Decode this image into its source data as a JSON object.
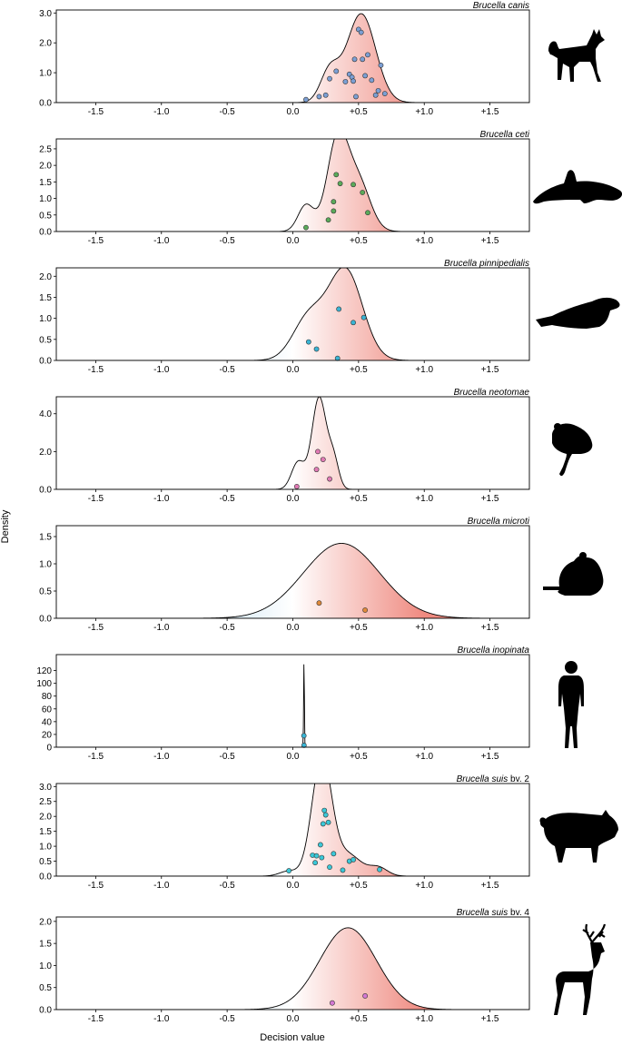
{
  "figure": {
    "ylabel": "Density",
    "xlabel": "Decision value",
    "kde_fill": {
      "negative_color": "#d9ecf7",
      "zero_color": "#ffffff",
      "positive_color": "#ef8a80",
      "outline_color": "#000000"
    }
  },
  "chart_data": [
    {
      "type": "area",
      "title": "Brucella canis",
      "title_parts": [
        {
          "text": "Brucella canis",
          "italic": true
        }
      ],
      "host_icon": "dog-silhouette-icon",
      "xlim": [
        -1.8,
        1.8
      ],
      "ylim": [
        0,
        3.1
      ],
      "x_ticks": [
        -1.5,
        -1.0,
        -0.5,
        0.0,
        0.5,
        1.0,
        1.5
      ],
      "x_tick_labels": [
        "-1.5",
        "-1.0",
        "-0.5",
        "0.0",
        "+0.5",
        "+1.0",
        "+1.5"
      ],
      "y_ticks": [
        0,
        1,
        2,
        3
      ],
      "y_tick_labels": [
        "0.0",
        "1.0",
        "2.0",
        "3.0"
      ],
      "kde_components": [
        {
          "mean": 0.28,
          "sd": 0.07,
          "weight": 0.18
        },
        {
          "mean": 0.52,
          "sd": 0.11,
          "weight": 0.82
        }
      ],
      "point_color": "#7b9fd4",
      "points": [
        {
          "x": 0.1,
          "y": 0.1
        },
        {
          "x": 0.2,
          "y": 0.2
        },
        {
          "x": 0.25,
          "y": 0.25
        },
        {
          "x": 0.28,
          "y": 0.8
        },
        {
          "x": 0.33,
          "y": 1.05
        },
        {
          "x": 0.4,
          "y": 0.7
        },
        {
          "x": 0.43,
          "y": 0.95
        },
        {
          "x": 0.45,
          "y": 0.85
        },
        {
          "x": 0.46,
          "y": 0.72
        },
        {
          "x": 0.47,
          "y": 1.45
        },
        {
          "x": 0.48,
          "y": 0.2
        },
        {
          "x": 0.5,
          "y": 2.45
        },
        {
          "x": 0.52,
          "y": 2.35
        },
        {
          "x": 0.53,
          "y": 1.45
        },
        {
          "x": 0.55,
          "y": 0.9
        },
        {
          "x": 0.57,
          "y": 1.6
        },
        {
          "x": 0.6,
          "y": 0.75
        },
        {
          "x": 0.63,
          "y": 0.25
        },
        {
          "x": 0.65,
          "y": 0.4
        },
        {
          "x": 0.67,
          "y": 1.25
        },
        {
          "x": 0.7,
          "y": 0.3
        }
      ]
    },
    {
      "type": "area",
      "title": "Brucella ceti",
      "title_parts": [
        {
          "text": "Brucella ceti",
          "italic": true
        }
      ],
      "host_icon": "dolphin-silhouette-icon",
      "xlim": [
        -1.8,
        1.8
      ],
      "ylim": [
        0,
        2.8
      ],
      "x_ticks": [
        -1.5,
        -1.0,
        -0.5,
        0.0,
        0.5,
        1.0,
        1.5
      ],
      "x_tick_labels": [
        "-1.5",
        "-1.0",
        "-0.5",
        "0.0",
        "+0.5",
        "+1.0",
        "+1.5"
      ],
      "y_ticks": [
        0,
        0.5,
        1.0,
        1.5,
        2.0,
        2.5
      ],
      "y_tick_labels": [
        "0.0",
        "0.5",
        "1.0",
        "1.5",
        "2.0",
        "2.5"
      ],
      "kde_components": [
        {
          "mean": 0.1,
          "sd": 0.06,
          "weight": 0.12
        },
        {
          "mean": 0.34,
          "sd": 0.08,
          "weight": 0.55
        },
        {
          "mean": 0.5,
          "sd": 0.09,
          "weight": 0.33
        }
      ],
      "point_color": "#5aaa5a",
      "points": [
        {
          "x": 0.1,
          "y": 0.12
        },
        {
          "x": 0.27,
          "y": 0.35
        },
        {
          "x": 0.31,
          "y": 0.62
        },
        {
          "x": 0.31,
          "y": 0.9
        },
        {
          "x": 0.33,
          "y": 1.72
        },
        {
          "x": 0.36,
          "y": 1.45
        },
        {
          "x": 0.46,
          "y": 1.42
        },
        {
          "x": 0.53,
          "y": 1.18
        },
        {
          "x": 0.57,
          "y": 0.57
        }
      ]
    },
    {
      "type": "area",
      "title": "Brucella pinnipedialis",
      "title_parts": [
        {
          "text": "Brucella pinnipedialis",
          "italic": true
        }
      ],
      "host_icon": "seal-silhouette-icon",
      "xlim": [
        -1.8,
        1.8
      ],
      "ylim": [
        0,
        2.2
      ],
      "x_ticks": [
        -1.5,
        -1.0,
        -0.5,
        0.0,
        0.5,
        1.0,
        1.5
      ],
      "x_tick_labels": [
        "-1.5",
        "-1.0",
        "-0.5",
        "0.0",
        "+0.5",
        "+1.0",
        "+1.5"
      ],
      "y_ticks": [
        0,
        0.5,
        1.0,
        1.5,
        2.0
      ],
      "y_tick_labels": [
        "0.0",
        "0.5",
        "1.0",
        "1.5",
        "2.0"
      ],
      "kde_components": [
        {
          "mean": 0.12,
          "sd": 0.12,
          "weight": 0.3
        },
        {
          "mean": 0.4,
          "sd": 0.13,
          "weight": 0.7
        }
      ],
      "point_color": "#3ab4d4",
      "points": [
        {
          "x": 0.12,
          "y": 0.44
        },
        {
          "x": 0.18,
          "y": 0.27
        },
        {
          "x": 0.34,
          "y": 0.05
        },
        {
          "x": 0.35,
          "y": 1.22
        },
        {
          "x": 0.46,
          "y": 0.9
        },
        {
          "x": 0.54,
          "y": 1.02
        }
      ]
    },
    {
      "type": "area",
      "title": "Brucella neotomae",
      "title_parts": [
        {
          "text": "Brucella neotomae",
          "italic": true
        }
      ],
      "host_icon": "woodrat-silhouette-icon",
      "xlim": [
        -1.8,
        1.8
      ],
      "ylim": [
        0,
        4.9
      ],
      "x_ticks": [
        -1.5,
        -1.0,
        -0.5,
        0.0,
        0.5,
        1.0,
        1.5
      ],
      "x_tick_labels": [
        "-1.5",
        "-1.0",
        "-0.5",
        "0.0",
        "+0.5",
        "+1.0",
        "+1.5"
      ],
      "y_ticks": [
        0,
        2,
        4
      ],
      "y_tick_labels": [
        "0.0",
        "2.0",
        "4.0"
      ],
      "kde_components": [
        {
          "mean": 0.04,
          "sd": 0.05,
          "weight": 0.18
        },
        {
          "mean": 0.2,
          "sd": 0.055,
          "weight": 0.67
        },
        {
          "mean": 0.31,
          "sd": 0.04,
          "weight": 0.15
        }
      ],
      "point_color": "#e07ab4",
      "points": [
        {
          "x": 0.03,
          "y": 0.15
        },
        {
          "x": 0.18,
          "y": 1.05
        },
        {
          "x": 0.19,
          "y": 2.0
        },
        {
          "x": 0.23,
          "y": 1.58
        },
        {
          "x": 0.28,
          "y": 0.55
        }
      ]
    },
    {
      "type": "area",
      "title": "Brucella microti",
      "title_parts": [
        {
          "text": "Brucella microti",
          "italic": true
        }
      ],
      "host_icon": "vole-silhouette-icon",
      "xlim": [
        -1.8,
        1.8
      ],
      "ylim": [
        0,
        1.7
      ],
      "x_ticks": [
        -1.5,
        -1.0,
        -0.5,
        0.0,
        0.5,
        1.0,
        1.5
      ],
      "x_tick_labels": [
        "-1.5",
        "-1.0",
        "-0.5",
        "0.0",
        "+0.5",
        "+1.0",
        "+1.5"
      ],
      "y_ticks": [
        0,
        0.5,
        1.0,
        1.5
      ],
      "y_tick_labels": [
        "0.0",
        "0.5",
        "1.0",
        "1.5"
      ],
      "kde_components": [
        {
          "mean": 0.37,
          "sd": 0.29,
          "weight": 1.0
        }
      ],
      "point_color": "#e08a3a",
      "points": [
        {
          "x": 0.2,
          "y": 0.28
        },
        {
          "x": 0.55,
          "y": 0.15
        }
      ]
    },
    {
      "type": "area",
      "title": "Brucella inopinata",
      "title_parts": [
        {
          "text": "Brucella inopinata",
          "italic": true
        }
      ],
      "host_icon": "human-silhouette-icon",
      "xlim": [
        -1.8,
        1.8
      ],
      "ylim": [
        0,
        145
      ],
      "x_ticks": [
        -1.5,
        -1.0,
        -0.5,
        0.0,
        0.5,
        1.0,
        1.5
      ],
      "x_tick_labels": [
        "-1.5",
        "-1.0",
        "-0.5",
        "0.0",
        "+0.5",
        "+1.0",
        "+1.5"
      ],
      "y_ticks": [
        0,
        20,
        40,
        60,
        80,
        100,
        120
      ],
      "y_tick_labels": [
        "0",
        "20",
        "40",
        "60",
        "80",
        "100",
        "120"
      ],
      "kde_components": [
        {
          "mean": 0.085,
          "sd": 0.0029,
          "weight": 1.0
        }
      ],
      "point_color": "#3ab4d4",
      "points": [
        {
          "x": 0.084,
          "y": 18
        },
        {
          "x": 0.085,
          "y": 3
        }
      ]
    },
    {
      "type": "area",
      "title": "Brucella suis bv. 2",
      "title_parts": [
        {
          "text": "Brucella suis",
          "italic": true
        },
        {
          "text": " bv. 2",
          "italic": false
        }
      ],
      "host_icon": "pig-silhouette-icon",
      "xlim": [
        -1.8,
        1.8
      ],
      "ylim": [
        0,
        3.1
      ],
      "x_ticks": [
        -1.5,
        -1.0,
        -0.5,
        0.0,
        0.5,
        1.0,
        1.5
      ],
      "x_tick_labels": [
        "-1.5",
        "-1.0",
        "-0.5",
        "0.0",
        "+0.5",
        "+1.0",
        "+1.5"
      ],
      "y_ticks": [
        0,
        0.5,
        1.0,
        1.5,
        2.0,
        2.5,
        3.0
      ],
      "y_tick_labels": [
        "0.0",
        "0.5",
        "1.0",
        "1.5",
        "2.0",
        "2.5",
        "3.0"
      ],
      "kde_components": [
        {
          "mean": 0.22,
          "sd": 0.075,
          "weight": 0.74
        },
        {
          "mean": 0.42,
          "sd": 0.1,
          "weight": 0.18
        },
        {
          "mean": 0.65,
          "sd": 0.07,
          "weight": 0.05
        },
        {
          "mean": -0.03,
          "sd": 0.07,
          "weight": 0.03
        }
      ],
      "point_color": "#3ac8d8",
      "points": [
        {
          "x": -0.03,
          "y": 0.18
        },
        {
          "x": 0.15,
          "y": 0.7
        },
        {
          "x": 0.18,
          "y": 0.68
        },
        {
          "x": 0.17,
          "y": 0.45
        },
        {
          "x": 0.21,
          "y": 1.05
        },
        {
          "x": 0.22,
          "y": 0.62
        },
        {
          "x": 0.23,
          "y": 1.75
        },
        {
          "x": 0.24,
          "y": 2.2
        },
        {
          "x": 0.25,
          "y": 2.05
        },
        {
          "x": 0.27,
          "y": 1.8
        },
        {
          "x": 0.28,
          "y": 0.3
        },
        {
          "x": 0.31,
          "y": 0.75
        },
        {
          "x": 0.38,
          "y": 0.2
        },
        {
          "x": 0.43,
          "y": 0.5
        },
        {
          "x": 0.46,
          "y": 0.55
        },
        {
          "x": 0.66,
          "y": 0.22
        }
      ]
    },
    {
      "type": "area",
      "title": "Brucella suis bv. 4",
      "title_parts": [
        {
          "text": "Brucella suis",
          "italic": true
        },
        {
          "text": " bv. 4",
          "italic": false
        }
      ],
      "host_icon": "reindeer-silhouette-icon",
      "xlim": [
        -1.8,
        1.8
      ],
      "ylim": [
        0,
        2.1
      ],
      "x_ticks": [
        -1.5,
        -1.0,
        -0.5,
        0.0,
        0.5,
        1.0,
        1.5
      ],
      "x_tick_labels": [
        "-1.5",
        "-1.0",
        "-0.5",
        "0.0",
        "+0.5",
        "+1.0",
        "+1.5"
      ],
      "y_ticks": [
        0,
        0.5,
        1.0,
        1.5,
        2.0
      ],
      "y_tick_labels": [
        "0.0",
        "0.5",
        "1.0",
        "1.5",
        "2.0"
      ],
      "kde_components": [
        {
          "mean": 0.42,
          "sd": 0.215,
          "weight": 1.0
        }
      ],
      "point_color": "#d478d4",
      "points": [
        {
          "x": 0.3,
          "y": 0.15
        },
        {
          "x": 0.55,
          "y": 0.31
        }
      ]
    }
  ]
}
